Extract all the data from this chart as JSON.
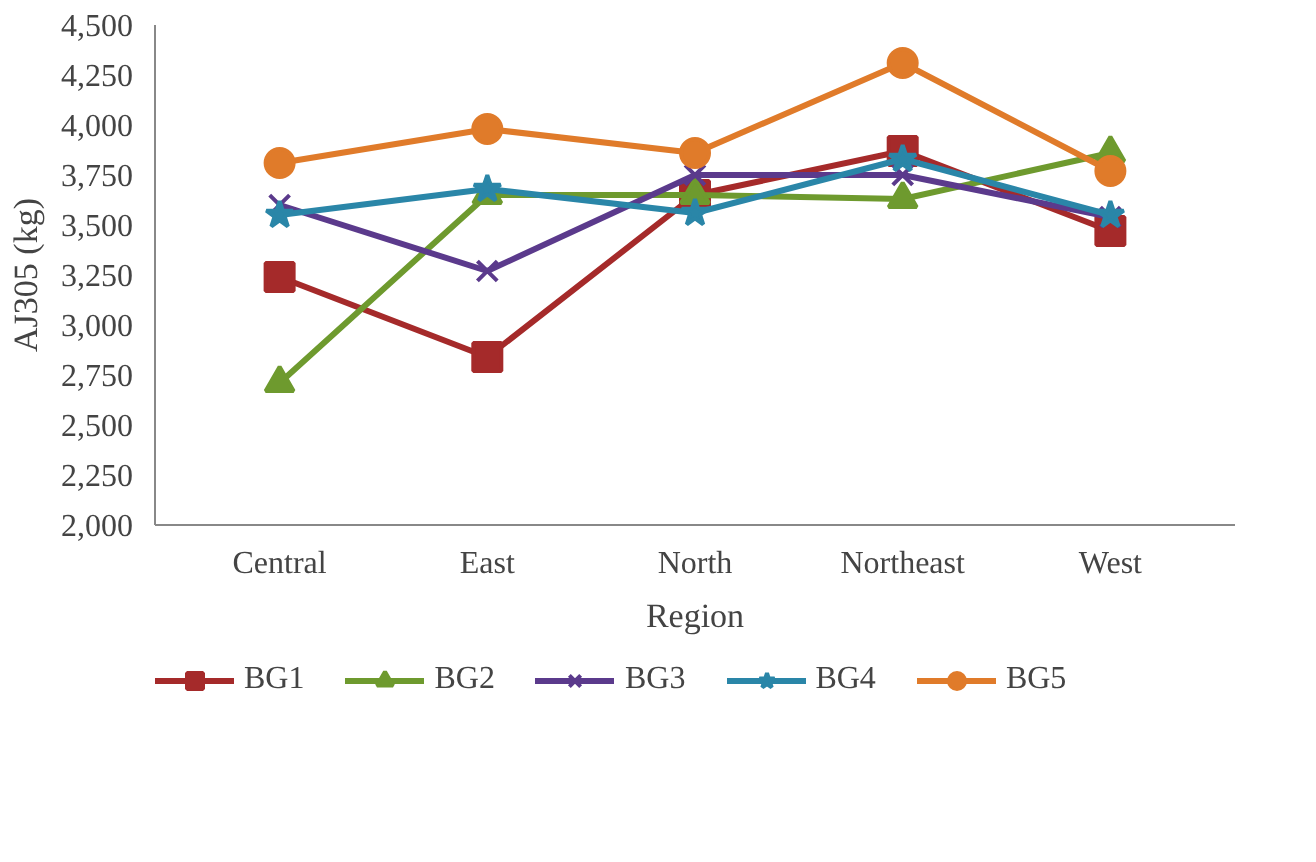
{
  "chart_data": {
    "type": "line",
    "xlabel": "Region",
    "ylabel": "AJ305 (kg)",
    "categories": [
      "Central",
      "East",
      "North",
      "Northeast",
      "West"
    ],
    "series": [
      {
        "name": "BG1",
        "color": "#a52a2a",
        "marker": "square",
        "values": [
          3240,
          2840,
          3650,
          3870,
          3470
        ]
      },
      {
        "name": "BG2",
        "color": "#6e9a2e",
        "marker": "triangle",
        "values": [
          2710,
          3650,
          3650,
          3630,
          3860
        ]
      },
      {
        "name": "BG3",
        "color": "#5b3a8c",
        "marker": "cross",
        "values": [
          3600,
          3270,
          3750,
          3750,
          3540
        ]
      },
      {
        "name": "BG4",
        "color": "#2a86a8",
        "marker": "star",
        "values": [
          3550,
          3680,
          3560,
          3830,
          3550
        ]
      },
      {
        "name": "BG5",
        "color": "#e07b2a",
        "marker": "circle",
        "values": [
          3810,
          3980,
          3860,
          4310,
          3770
        ]
      }
    ],
    "ylim": [
      2000,
      4500
    ],
    "yticks": [
      {
        "value": 2000,
        "label": "2,000"
      },
      {
        "value": 2250,
        "label": "2,250"
      },
      {
        "value": 2500,
        "label": "2,500"
      },
      {
        "value": 2750,
        "label": "2,750"
      },
      {
        "value": 3000,
        "label": "3,000"
      },
      {
        "value": 3250,
        "label": "3,250"
      },
      {
        "value": 3500,
        "label": "3,500"
      },
      {
        "value": 3750,
        "label": "3,750"
      },
      {
        "value": 4000,
        "label": "4,000"
      },
      {
        "value": 4250,
        "label": "4,250"
      },
      {
        "value": 4500,
        "label": "4,500"
      }
    ],
    "grid": false,
    "legend": "bottom",
    "line_style": "solid"
  }
}
